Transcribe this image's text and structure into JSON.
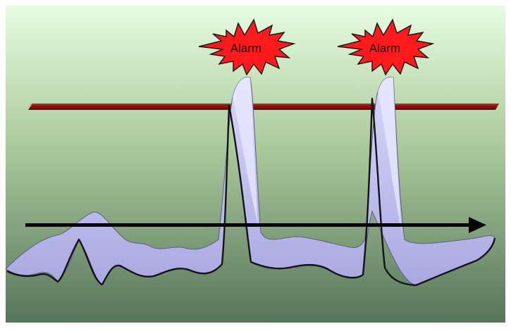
{
  "colors": {
    "background_top": "#e6fde0",
    "background_mid": "#a9c99a",
    "background_bottom": "#57765a",
    "ribbon_fill": "#b8b8ea",
    "ribbon_stroke": "#171717",
    "threshold_bar": "#8b0d12",
    "alarm_fill": "#ff1b1b",
    "alarm_stroke": "#111111",
    "arrow": "#000000"
  },
  "alarms": [
    {
      "label": "Alarm"
    },
    {
      "label": "Alarm"
    }
  ],
  "icons": {
    "alarm_burst": "explosion-burst-icon",
    "time_arrow": "right-arrow-icon"
  }
}
